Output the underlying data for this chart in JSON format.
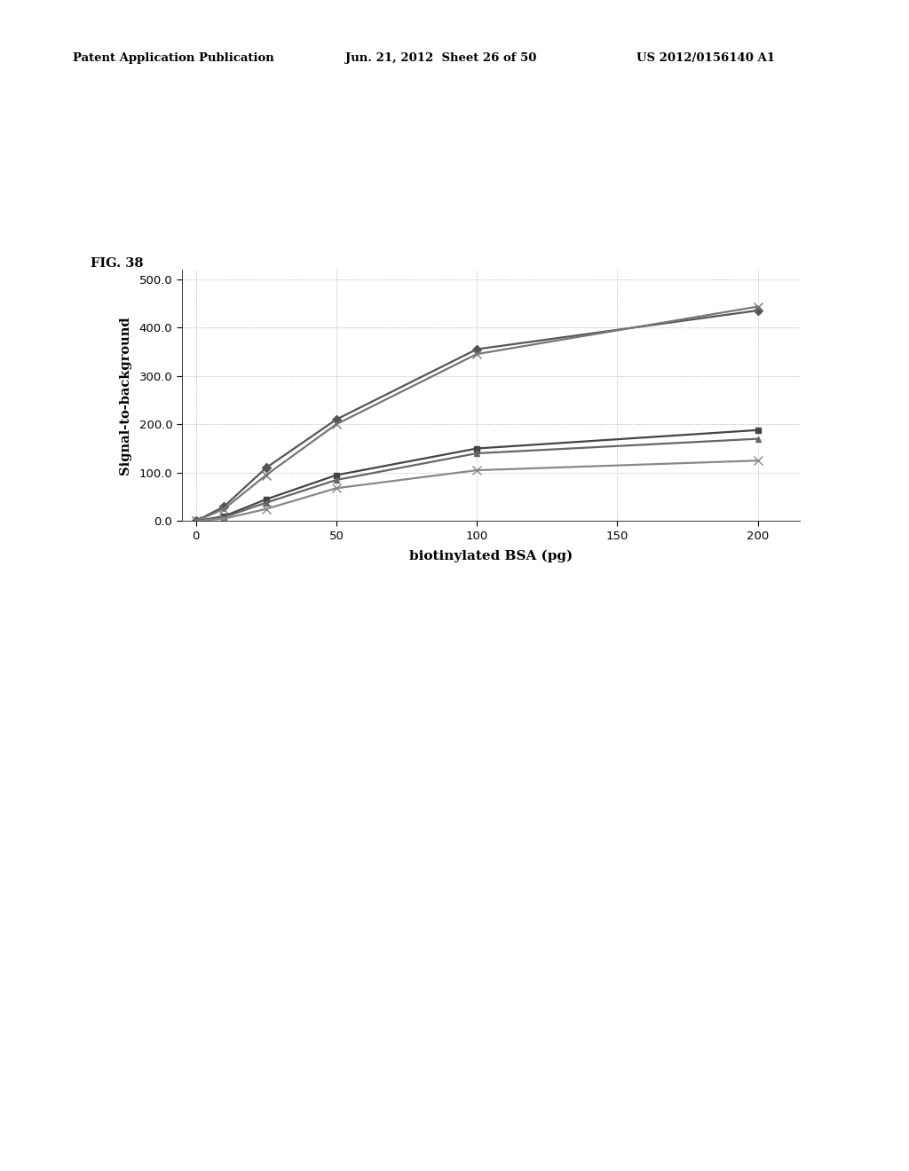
{
  "fig_label": "FIG. 38",
  "header_left": "Patent Application Publication",
  "header_center": "Jun. 21, 2012  Sheet 26 of 50",
  "header_right": "US 2012/0156140 A1",
  "xlabel": "biotinylated BSA (pg)",
  "ylabel": "Signal-to-background",
  "xlim": [
    -5,
    215
  ],
  "ylim": [
    0,
    520
  ],
  "xticks": [
    0,
    50,
    100,
    150,
    200
  ],
  "yticks": [
    0.0,
    100.0,
    200.0,
    300.0,
    400.0,
    500.0
  ],
  "background_color": "#ffffff",
  "series": [
    {
      "x": [
        0,
        10,
        25,
        50,
        100,
        200
      ],
      "y": [
        0,
        30,
        110,
        210,
        355,
        435
      ],
      "color": "#555555",
      "marker": "D",
      "marker_size": 5,
      "linewidth": 1.6
    },
    {
      "x": [
        0,
        10,
        25,
        50,
        100,
        200
      ],
      "y": [
        0,
        25,
        95,
        200,
        345,
        443
      ],
      "color": "#777777",
      "marker": "x",
      "marker_size": 7,
      "linewidth": 1.6
    },
    {
      "x": [
        0,
        10,
        25,
        50,
        100,
        200
      ],
      "y": [
        0,
        10,
        45,
        95,
        150,
        188
      ],
      "color": "#444444",
      "marker": "s",
      "marker_size": 5,
      "linewidth": 1.6
    },
    {
      "x": [
        0,
        10,
        25,
        50,
        100,
        200
      ],
      "y": [
        0,
        8,
        38,
        85,
        140,
        170
      ],
      "color": "#666666",
      "marker": "^",
      "marker_size": 5,
      "linewidth": 1.6
    },
    {
      "x": [
        0,
        10,
        25,
        50,
        100,
        200
      ],
      "y": [
        0,
        5,
        25,
        68,
        105,
        125
      ],
      "color": "#888888",
      "marker": "x",
      "marker_size": 7,
      "linewidth": 1.6
    }
  ]
}
